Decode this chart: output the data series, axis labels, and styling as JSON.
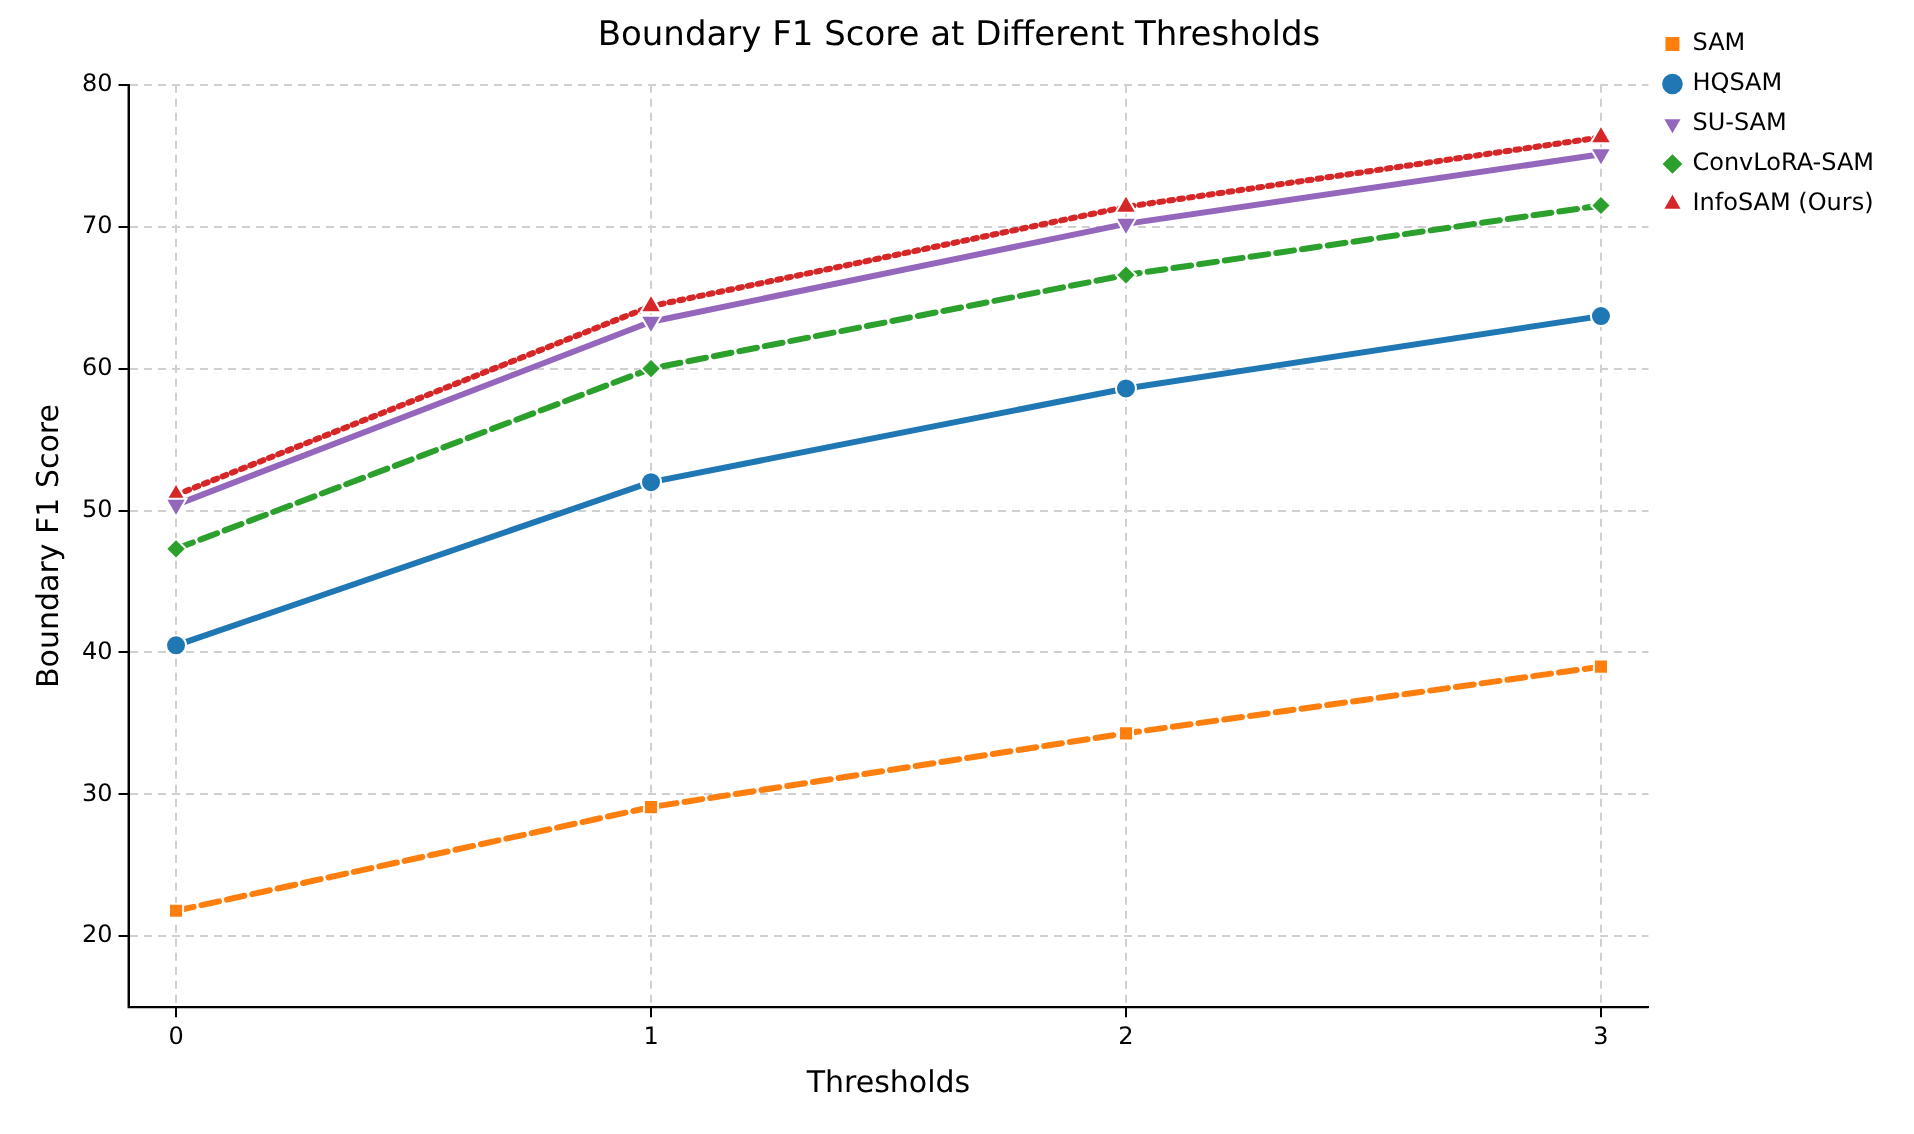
{
  "chart_data": {
    "type": "line",
    "title": "Boundary F1 Score at Different Thresholds",
    "xlabel": "Thresholds",
    "ylabel": "Boundary F1 Score",
    "x": [
      0,
      1,
      2,
      3
    ],
    "xlim": [
      -0.1,
      3.1
    ],
    "xticks": [
      0,
      1,
      2,
      3
    ],
    "ylim": [
      15,
      80
    ],
    "yticks": [
      20,
      30,
      40,
      50,
      60,
      70,
      80
    ],
    "grid": true,
    "legend": "top right",
    "series": [
      {
        "name": "SAM",
        "color": "#ff7f0e",
        "values": [
          21.8,
          29.1,
          34.3,
          39.0
        ],
        "marker": "square",
        "line_style": "dashed"
      },
      {
        "name": "HQSAM",
        "color": "#1f77b4",
        "values": [
          40.5,
          52.0,
          58.6,
          63.7
        ],
        "marker": "circle",
        "line_style": "solid"
      },
      {
        "name": "SU-SAM",
        "color": "#9467bd",
        "values": [
          50.4,
          63.3,
          70.2,
          75.1
        ],
        "marker": "triangle",
        "line_style": "solid"
      },
      {
        "name": "ConvLoRA-SAM",
        "color": "#2ca02c",
        "values": [
          47.3,
          60.0,
          66.6,
          71.5
        ],
        "marker": "diamond",
        "line_style": "dashed"
      },
      {
        "name": "InfoSAM (Ours)",
        "color": "#d62728",
        "values": [
          51.1,
          64.4,
          71.4,
          76.3
        ],
        "marker": "triangle",
        "line_style": "dotted"
      }
    ]
  }
}
